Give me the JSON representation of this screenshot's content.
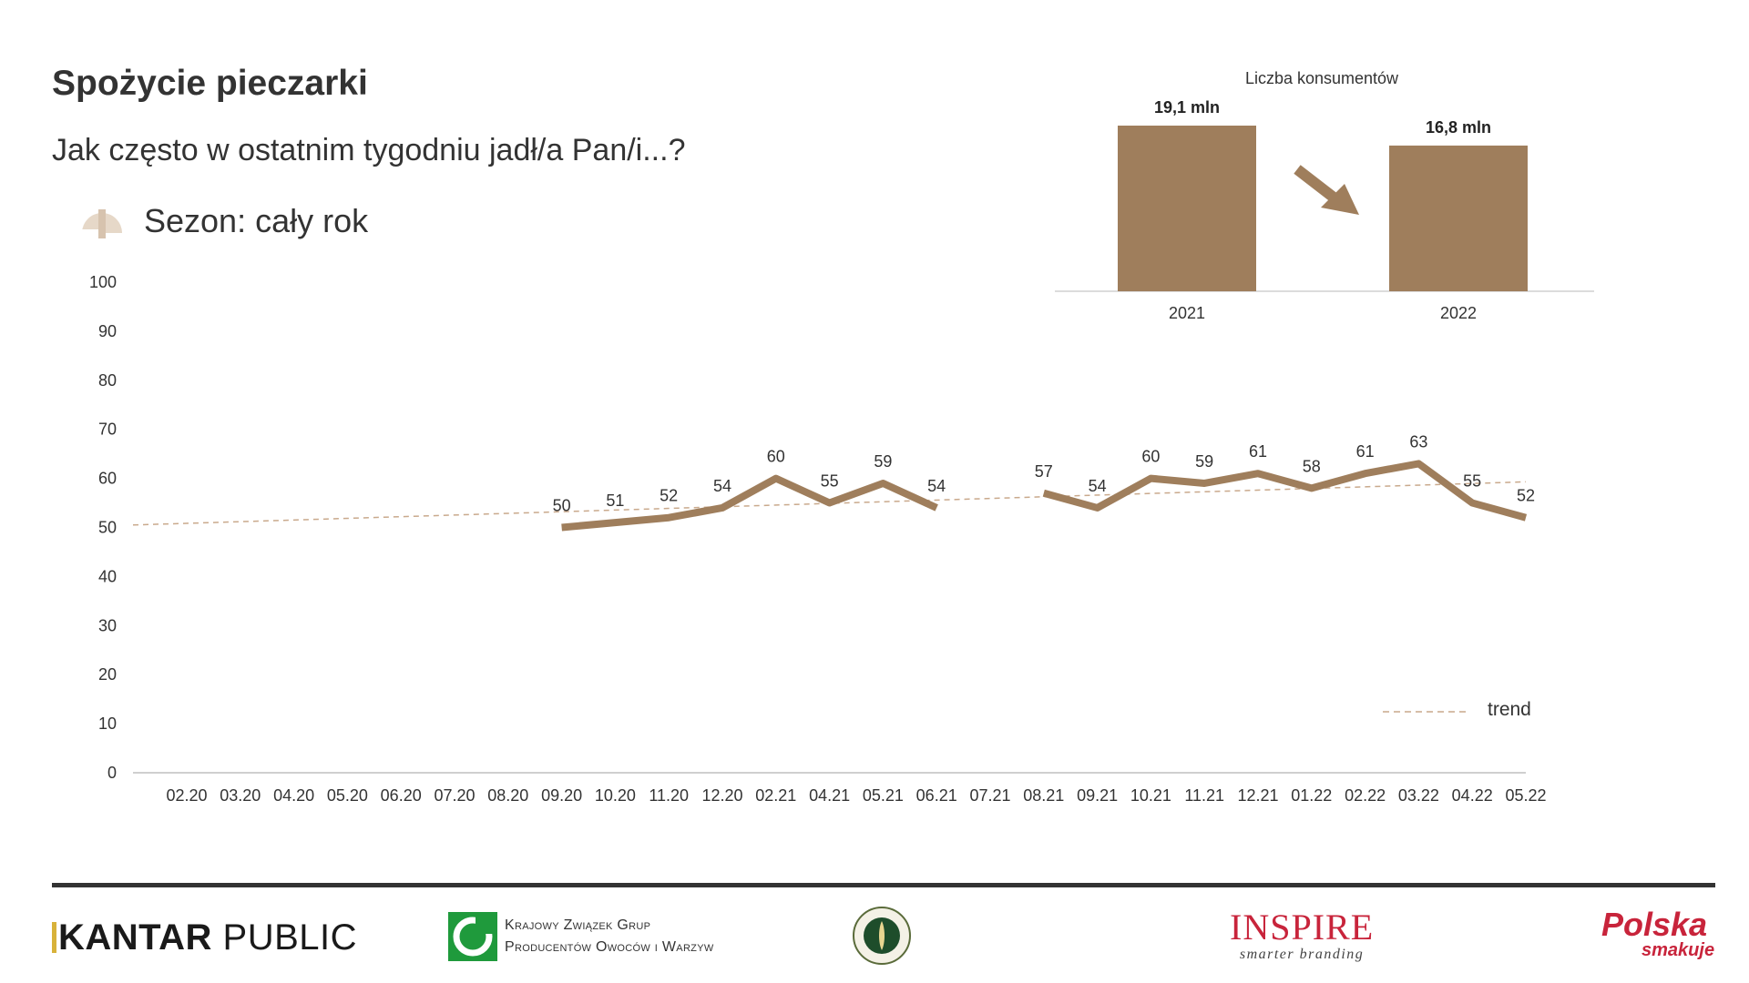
{
  "page": {
    "title": "Spożycie pieczarki",
    "subtitle": "Jak często w ostatnim tygodniu jadł/a Pan/i...?",
    "season_label": "Sezon: cały rok",
    "colors": {
      "series": "#9f7e5c",
      "trend": "#c9a98c",
      "axis": "#bfbfbf",
      "season_icon": "#d7c3ae"
    }
  },
  "chart_data": [
    {
      "type": "line",
      "categories": [
        "02.20",
        "03.20",
        "04.20",
        "05.20",
        "06.20",
        "07.20",
        "08.20",
        "09.20",
        "10.20",
        "11.20",
        "12.20",
        "02.21",
        "04.21",
        "05.21",
        "06.21",
        "07.21",
        "08.21",
        "09.21",
        "10.21",
        "11.21",
        "12.21",
        "01.22",
        "02.22",
        "03.22",
        "04.22",
        "05.22"
      ],
      "series": [
        {
          "values": [
            null,
            null,
            null,
            null,
            null,
            null,
            null,
            50,
            51,
            52,
            54,
            60,
            55,
            59,
            54,
            null,
            57,
            54,
            60,
            59,
            61,
            58,
            61,
            63,
            55,
            52
          ]
        }
      ],
      "trend": {
        "name": "trend",
        "start": 50.5,
        "end": 59.3
      },
      "ylim": [
        0,
        100
      ],
      "yticks": [
        0,
        10,
        20,
        30,
        40,
        50,
        60,
        70,
        80,
        90,
        100
      ],
      "grid": false,
      "legend": "bottom-right"
    },
    {
      "type": "bar",
      "title": "Liczba konsumentów",
      "categories": [
        "2021",
        "2022"
      ],
      "values": [
        19.1,
        16.8
      ],
      "labels": [
        "19,1 mln",
        "16,8 mln"
      ]
    }
  ],
  "footer": {
    "kantar": {
      "main": "KANTAR",
      "second": "PUBLIC"
    },
    "kzgp": {
      "line1": "Krajowy Związek Grup",
      "line2": "Producentów Owoców i Warzyw"
    },
    "inspire": {
      "main": "INSPIRE",
      "sub": "smarter branding"
    },
    "polska": {
      "main": "Polska",
      "sub": "smakuje"
    }
  }
}
